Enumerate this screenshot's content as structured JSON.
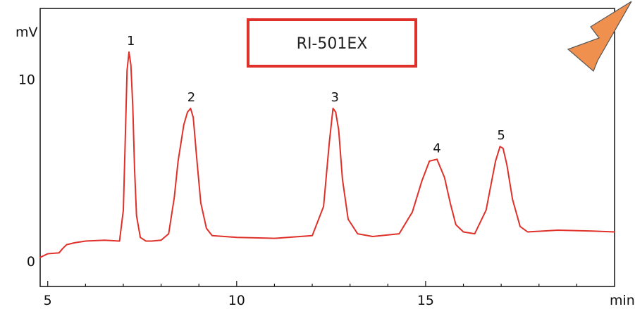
{
  "chart_data": {
    "type": "line",
    "title": "RI-501EX",
    "xlabel": "min",
    "ylabel": "mV",
    "xlim": [
      4.8,
      20.0
    ],
    "ylim": [
      -1.4,
      13.9
    ],
    "x_ticks": [
      5,
      10,
      15
    ],
    "y_ticks": [
      0,
      10
    ],
    "grid": false,
    "series": [
      {
        "color": "#e0302a",
        "x": [
          4.8,
          5.0,
          5.3,
          5.4,
          5.5,
          5.7,
          6.0,
          6.5,
          6.9,
          7.0,
          7.05,
          7.1,
          7.15,
          7.2,
          7.25,
          7.3,
          7.35,
          7.45,
          7.6,
          7.75,
          8.0,
          8.2,
          8.35,
          8.45,
          8.6,
          8.7,
          8.78,
          8.85,
          8.95,
          9.05,
          9.2,
          9.35,
          10.0,
          11.0,
          12.0,
          12.3,
          12.45,
          12.55,
          12.62,
          12.7,
          12.8,
          12.95,
          13.2,
          13.6,
          14.3,
          14.65,
          14.9,
          15.1,
          15.3,
          15.5,
          15.65,
          15.8,
          16.0,
          16.3,
          16.6,
          16.85,
          16.97,
          17.05,
          17.15,
          17.3,
          17.5,
          17.7,
          18.5,
          19.4,
          20.0
        ],
        "values": [
          0.2,
          0.4,
          0.45,
          0.7,
          0.9,
          1.0,
          1.1,
          1.15,
          1.1,
          2.8,
          6.5,
          10.5,
          11.5,
          10.8,
          8.5,
          5.0,
          2.5,
          1.3,
          1.1,
          1.1,
          1.15,
          1.5,
          3.5,
          5.5,
          7.5,
          8.2,
          8.4,
          7.9,
          5.5,
          3.2,
          1.8,
          1.4,
          1.3,
          1.25,
          1.4,
          3.0,
          6.5,
          8.4,
          8.2,
          7.2,
          4.5,
          2.3,
          1.5,
          1.35,
          1.5,
          2.7,
          4.4,
          5.5,
          5.6,
          4.6,
          3.2,
          2.0,
          1.6,
          1.5,
          2.8,
          5.5,
          6.3,
          6.2,
          5.3,
          3.4,
          1.9,
          1.6,
          1.7,
          1.65,
          1.6
        ]
      }
    ],
    "annotations": [
      {
        "text": "1",
        "x": 7.2,
        "y": 11.5
      },
      {
        "text": "2",
        "x": 8.8,
        "y": 8.4
      },
      {
        "text": "3",
        "x": 12.6,
        "y": 8.4
      },
      {
        "text": "4",
        "x": 15.3,
        "y": 5.6
      },
      {
        "text": "5",
        "x": 17.0,
        "y": 6.3
      }
    ],
    "orange_arrow_color": "#f0904e"
  }
}
